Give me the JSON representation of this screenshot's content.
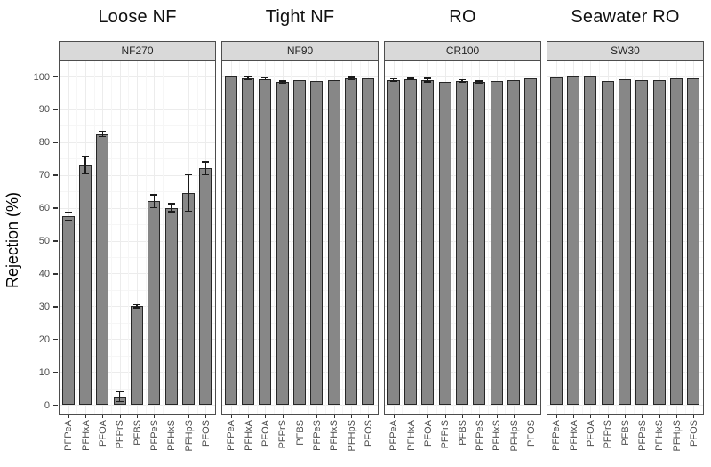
{
  "figure": {
    "y_axis_title": "Rejection (%)"
  },
  "chart_data": {
    "type": "bar",
    "title": "",
    "xlabel": "",
    "ylabel": "Rejection (%)",
    "ylim": [
      0,
      100
    ],
    "yticks": [
      0,
      10,
      20,
      30,
      40,
      50,
      60,
      70,
      80,
      90,
      100
    ],
    "grid": "major and minor, light gray",
    "legend": "none",
    "categories": [
      "PFPeA",
      "PFHxA",
      "PFOA",
      "PFPrS",
      "PFBS",
      "PFPeS",
      "PFHxS",
      "PFHpS",
      "PFOS"
    ],
    "facets": [
      {
        "group_title": "Loose NF",
        "strip_label": "NF270",
        "values": [
          57.5,
          73.0,
          82.5,
          2.5,
          30.0,
          62.0,
          60.0,
          64.5,
          72.0
        ],
        "errors": [
          1.2,
          2.7,
          0.8,
          1.5,
          0.5,
          2.0,
          1.2,
          5.5,
          2.0
        ]
      },
      {
        "group_title": "Tight NF",
        "strip_label": "NF90",
        "values": [
          99.9,
          99.5,
          99.3,
          98.3,
          98.8,
          98.7,
          98.9,
          99.4,
          99.5
        ],
        "errors": [
          0,
          0.4,
          0.3,
          0.3,
          0,
          0,
          0,
          0.3,
          0
        ]
      },
      {
        "group_title": "RO",
        "strip_label": "CR100",
        "values": [
          99.0,
          99.2,
          98.9,
          98.5,
          98.7,
          98.3,
          98.6,
          99.0,
          99.5
        ],
        "errors": [
          0.3,
          0.2,
          0.5,
          0,
          0.3,
          0.4,
          0,
          0,
          0
        ]
      },
      {
        "group_title": "Seawater RO",
        "strip_label": "SW30",
        "values": [
          99.8,
          99.9,
          99.9,
          98.7,
          99.2,
          99.0,
          98.9,
          99.4,
          99.5
        ],
        "errors": [
          0,
          0,
          0,
          0,
          0,
          0,
          0,
          0,
          0
        ]
      }
    ]
  },
  "colors": {
    "bar_fill": "#878787",
    "bar_stroke": "#262626",
    "error_bar": "#1a1a1a",
    "strip_bg": "#d9d9d9",
    "panel_border": "#4d4d4d",
    "grid_major": "#ececec",
    "grid_minor": "#f6f6f6",
    "tick_text": "#4d4d4d",
    "title_text": "#111111"
  }
}
